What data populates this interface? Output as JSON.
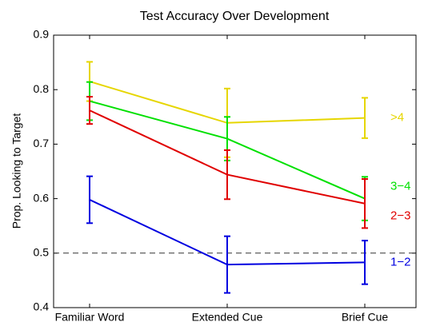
{
  "chart_data": {
    "type": "line",
    "title": "Test Accuracy Over Development",
    "y_label": "Prop. Looking to Target",
    "categories": [
      "Familiar Word",
      "Extended Cue",
      "Brief Cue"
    ],
    "series": [
      {
        "name": ">4",
        "color": "#e6d600",
        "values": [
          0.815,
          0.739,
          0.748
        ],
        "errors": [
          0.036,
          0.063,
          0.037
        ]
      },
      {
        "name": "3−4",
        "color": "#00e000",
        "values": [
          0.779,
          0.71,
          0.6
        ],
        "errors": [
          0.035,
          0.04,
          0.04
        ]
      },
      {
        "name": "2−3",
        "color": "#e00000",
        "values": [
          0.762,
          0.644,
          0.591
        ],
        "errors": [
          0.025,
          0.045,
          0.045
        ]
      },
      {
        "name": "1−2",
        "color": "#0000e0",
        "values": [
          0.598,
          0.479,
          0.483
        ],
        "errors": [
          0.043,
          0.052,
          0.04
        ]
      }
    ],
    "reference_line": 0.5,
    "ylim": [
      0.4,
      0.9
    ],
    "yticks": [
      0.4,
      0.5,
      0.6,
      0.7,
      0.8,
      0.9
    ]
  }
}
